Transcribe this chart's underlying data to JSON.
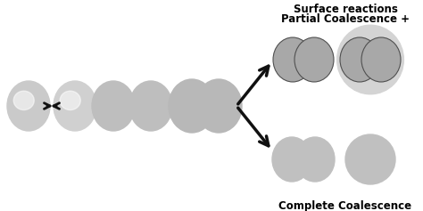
{
  "bg_color": "#ffffff",
  "gray_light": "#c8c8c8",
  "gray_mid": "#b8b8b8",
  "gray_dark": "#a8a8a8",
  "gray_outer": "#d4d4d4",
  "arrow_color": "#111111",
  "text_complete": "Complete Coalescence",
  "text_partial1": "Partial Coalescence +",
  "text_partial2": "Surface reactions",
  "fontsize": 8.5,
  "fig_width": 4.74,
  "fig_height": 2.37,
  "dpi": 100
}
